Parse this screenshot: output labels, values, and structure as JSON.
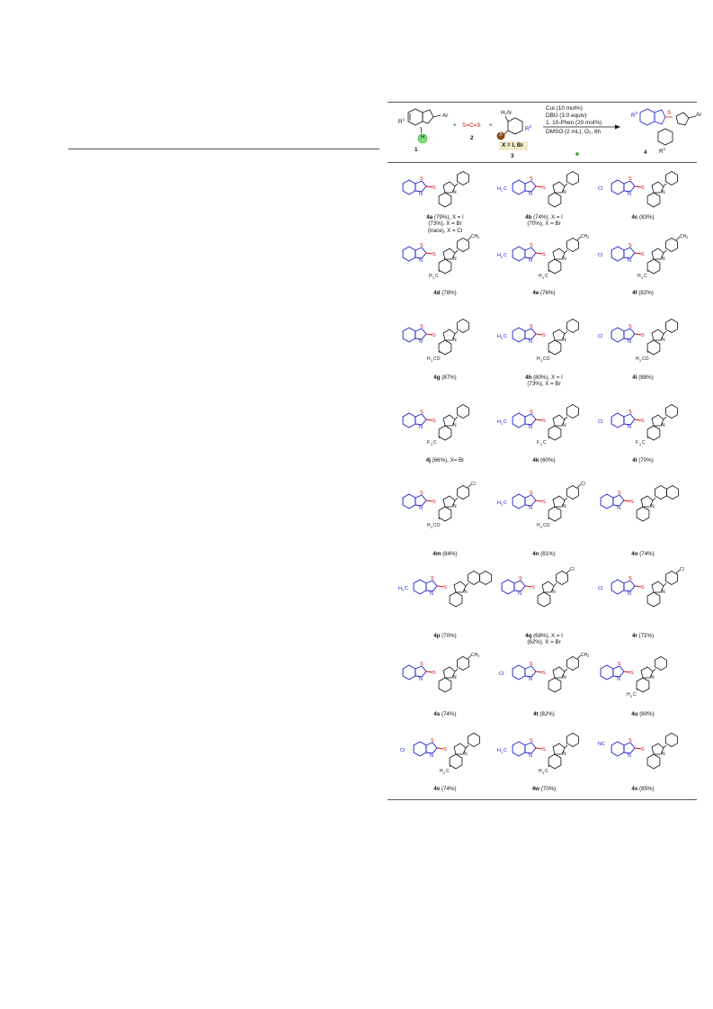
{
  "scheme": {
    "reactants": {
      "r1_label": "R",
      "r1_sup": "1",
      "ar_label": "Ar",
      "h_label": "H",
      "cs2_label": "S=C=S",
      "nh2_label": "H₂N",
      "r2_label": "R",
      "r2_sup": "2",
      "x_label": "X",
      "x_box_label": "X = I, Br",
      "num_1": "1",
      "num_2": "2",
      "num_3": "3",
      "plus": "+"
    },
    "conditions": [
      "CuI (10 mol%)",
      "DBU (3.0 equiv)",
      "1, 10-Phen (20 mol%)",
      "DMSO (2 mL), O₂, 6h"
    ],
    "product": {
      "num_4": "4",
      "r2_label": "R",
      "r2_sup": "2",
      "s_label": "S",
      "ar_label": "Ar",
      "r1_label": "R",
      "r1_sup": "1"
    }
  },
  "entries": [
    {
      "id": "4a",
      "lines": [
        "(79%), X = I",
        "(73%), X = Br",
        "(trace), X = Cl"
      ],
      "sub": "",
      "aryl": "Ph"
    },
    {
      "id": "4b",
      "lines": [
        "(74%), X = I",
        "(70%), X = Br"
      ],
      "sub": "H3C",
      "aryl": "Ph"
    },
    {
      "id": "4c",
      "lines": [
        "(83%)"
      ],
      "sub": "Cl",
      "aryl": "Ph"
    },
    {
      "id": "4d",
      "lines": [
        "(78%)"
      ],
      "sub": "",
      "aryl": "CH3",
      "core": "H3C"
    },
    {
      "id": "4e",
      "lines": [
        "(76%)"
      ],
      "sub": "H3C",
      "aryl": "CH3",
      "core": "H3C"
    },
    {
      "id": "4f",
      "lines": [
        "(82%)"
      ],
      "sub": "Cl",
      "aryl": "CH3",
      "core": "H3C"
    },
    {
      "id": "4g",
      "lines": [
        "(87%)"
      ],
      "sub": "",
      "aryl": "Ph",
      "core": "H3CO"
    },
    {
      "id": "4h",
      "lines": [
        "(80%), X = I",
        "(73%), X = Br"
      ],
      "sub": "H3C",
      "aryl": "Ph",
      "core": "H3CO"
    },
    {
      "id": "4i",
      "lines": [
        "(88%)"
      ],
      "sub": "Cl",
      "aryl": "Ph",
      "core": "H3CO"
    },
    {
      "id": "4j",
      "lines": [
        "(66%), X= Br"
      ],
      "sub": "",
      "aryl": "Ph",
      "core": "F3C"
    },
    {
      "id": "4k",
      "lines": [
        "(60%)"
      ],
      "sub": "H3C",
      "aryl": "Ph",
      "core": "F3C"
    },
    {
      "id": "4l",
      "lines": [
        "(70%)"
      ],
      "sub": "Cl",
      "aryl": "Ph",
      "core": "F3C"
    },
    {
      "id": "4m",
      "lines": [
        "(84%)"
      ],
      "sub": "",
      "aryl": "Cl",
      "core": "H3CO"
    },
    {
      "id": "4n",
      "lines": [
        "(81%)"
      ],
      "sub": "H3C",
      "aryl": "Cl",
      "core": "H3CO"
    },
    {
      "id": "4o",
      "lines": [
        "(74%)"
      ],
      "sub": "",
      "aryl": "Naph"
    },
    {
      "id": "4p",
      "lines": [
        "(70%)"
      ],
      "sub": "H3C",
      "aryl": "Naph"
    },
    {
      "id": "4q",
      "lines": [
        "(68%), X = I",
        "(62%), X = Br"
      ],
      "sub": "",
      "aryl": "Cl"
    },
    {
      "id": "4r",
      "lines": [
        "(72%)"
      ],
      "sub": "Cl",
      "aryl": "Cl"
    },
    {
      "id": "4s",
      "lines": [
        "(74%)"
      ],
      "sub": "",
      "aryl": "CH3"
    },
    {
      "id": "4t",
      "lines": [
        "(82%)"
      ],
      "sub": "Cl",
      "aryl": "CH3"
    },
    {
      "id": "4u",
      "lines": [
        "(80%)"
      ],
      "sub": "",
      "aryl": "Ph",
      "core": "H3C"
    },
    {
      "id": "4v",
      "lines": [
        "(74%)"
      ],
      "sub": "Cl",
      "aryl": "Ph",
      "core": "H3C"
    },
    {
      "id": "4w",
      "lines": [
        "(70%)"
      ],
      "sub": "H3C",
      "aryl": "Ph",
      "core": "H3C"
    },
    {
      "id": "4x",
      "lines": [
        "(85%)"
      ],
      "sub": "NC",
      "aryl": "Ph"
    }
  ],
  "atoms": {
    "S": "S",
    "N": "N",
    "Cl": "Cl",
    "CH3": "CH",
    "H3C": "H",
    "H3CO": "H",
    "F3C": "F",
    "NC": "NC",
    "three": "3",
    "C": "C",
    "CO": "CO",
    "O2": "O",
    "two": "2"
  }
}
